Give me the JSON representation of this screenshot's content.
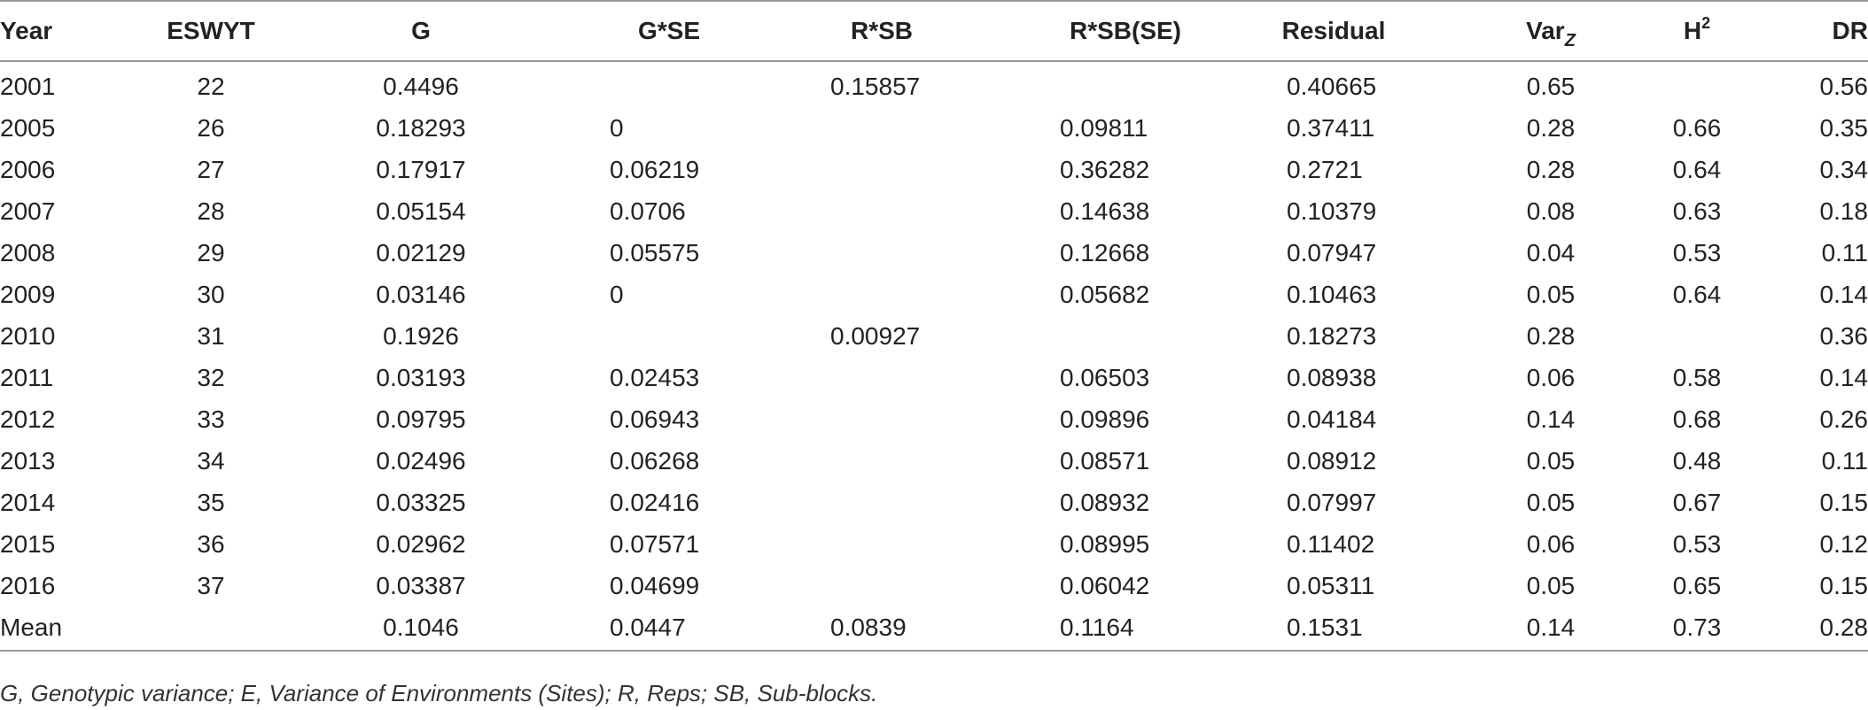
{
  "table": {
    "headers": {
      "year": "Year",
      "eswyt": "ESWYT",
      "g": "G",
      "gse": "G*SE",
      "rsb": "R*SB",
      "rsbse": "R*SB(SE)",
      "residual": "Residual",
      "var_base": "Var",
      "var_sub": "Z",
      "h2_base": "H",
      "h2_sup": "2",
      "dr": "DR"
    },
    "rows": [
      {
        "year": "2001",
        "eswyt": "22",
        "g": "0.4496",
        "gse": "",
        "rsb": "0.15857",
        "rsbse": "",
        "residual": "0.40665",
        "var": "0.65",
        "h2": "",
        "dr": "0.56"
      },
      {
        "year": "2005",
        "eswyt": "26",
        "g": "0.18293",
        "gse": "0",
        "rsb": "",
        "rsbse": "0.09811",
        "residual": "0.37411",
        "var": "0.28",
        "h2": "0.66",
        "dr": "0.35"
      },
      {
        "year": "2006",
        "eswyt": "27",
        "g": "0.17917",
        "gse": "0.06219",
        "rsb": "",
        "rsbse": "0.36282",
        "residual": "0.2721",
        "var": "0.28",
        "h2": "0.64",
        "dr": "0.34"
      },
      {
        "year": "2007",
        "eswyt": "28",
        "g": "0.05154",
        "gse": "0.0706",
        "rsb": "",
        "rsbse": "0.14638",
        "residual": "0.10379",
        "var": "0.08",
        "h2": "0.63",
        "dr": "0.18"
      },
      {
        "year": "2008",
        "eswyt": "29",
        "g": "0.02129",
        "gse": "0.05575",
        "rsb": "",
        "rsbse": "0.12668",
        "residual": "0.07947",
        "var": "0.04",
        "h2": "0.53",
        "dr": "0.11"
      },
      {
        "year": "2009",
        "eswyt": "30",
        "g": "0.03146",
        "gse": "0",
        "rsb": "",
        "rsbse": "0.05682",
        "residual": "0.10463",
        "var": "0.05",
        "h2": "0.64",
        "dr": "0.14"
      },
      {
        "year": "2010",
        "eswyt": "31",
        "g": "0.1926",
        "gse": "",
        "rsb": "0.00927",
        "rsbse": "",
        "residual": "0.18273",
        "var": "0.28",
        "h2": "",
        "dr": "0.36"
      },
      {
        "year": "2011",
        "eswyt": "32",
        "g": "0.03193",
        "gse": "0.02453",
        "rsb": "",
        "rsbse": "0.06503",
        "residual": "0.08938",
        "var": "0.06",
        "h2": "0.58",
        "dr": "0.14"
      },
      {
        "year": "2012",
        "eswyt": "33",
        "g": "0.09795",
        "gse": "0.06943",
        "rsb": "",
        "rsbse": "0.09896",
        "residual": "0.04184",
        "var": "0.14",
        "h2": "0.68",
        "dr": "0.26"
      },
      {
        "year": "2013",
        "eswyt": "34",
        "g": "0.02496",
        "gse": "0.06268",
        "rsb": "",
        "rsbse": "0.08571",
        "residual": "0.08912",
        "var": "0.05",
        "h2": "0.48",
        "dr": "0.11"
      },
      {
        "year": "2014",
        "eswyt": "35",
        "g": "0.03325",
        "gse": "0.02416",
        "rsb": "",
        "rsbse": "0.08932",
        "residual": "0.07997",
        "var": "0.05",
        "h2": "0.67",
        "dr": "0.15"
      },
      {
        "year": "2015",
        "eswyt": "36",
        "g": "0.02962",
        "gse": "0.07571",
        "rsb": "",
        "rsbse": "0.08995",
        "residual": "0.11402",
        "var": "0.06",
        "h2": "0.53",
        "dr": "0.12"
      },
      {
        "year": "2016",
        "eswyt": "37",
        "g": "0.03387",
        "gse": "0.04699",
        "rsb": "",
        "rsbse": "0.06042",
        "residual": "0.05311",
        "var": "0.05",
        "h2": "0.65",
        "dr": "0.15"
      },
      {
        "year": "Mean",
        "eswyt": "",
        "g": "0.1046",
        "gse": "0.0447",
        "rsb": "0.0839",
        "rsbse": "0.1164",
        "residual": "0.1531",
        "var": "0.14",
        "h2": "0.73",
        "dr": "0.28"
      }
    ]
  },
  "footnote": "G, Genotypic variance; E, Variance of Environments (Sites); R, Reps; SB, Sub-blocks."
}
